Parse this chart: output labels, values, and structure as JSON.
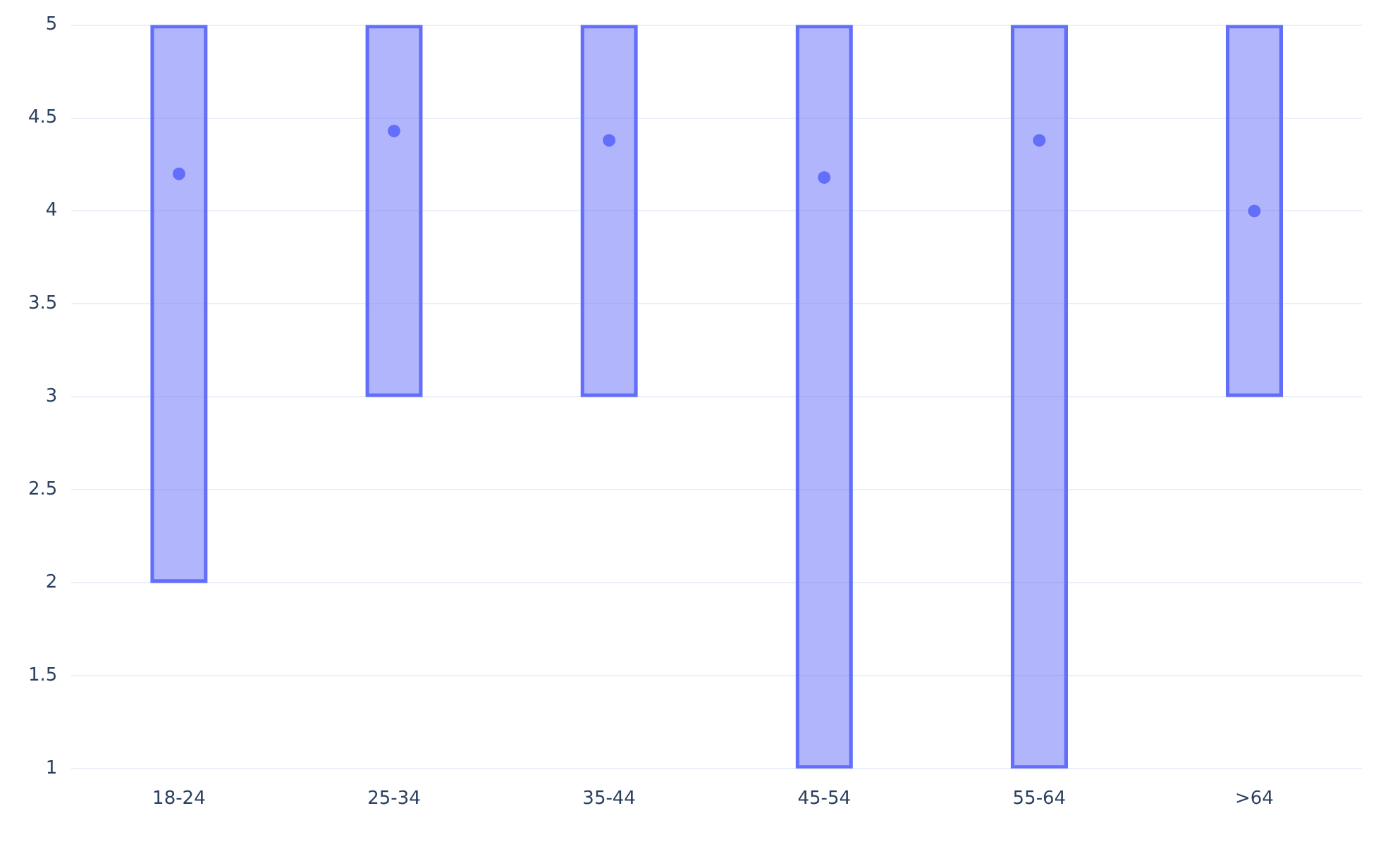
{
  "chart_data": {
    "type": "bar",
    "categories": [
      "18-24",
      "25-34",
      "35-44",
      "45-54",
      "55-64",
      ">64"
    ],
    "series": [
      {
        "type": "bar",
        "color": "#636efa",
        "values": [
          3,
          2,
          2,
          4,
          4,
          2
        ],
        "base": [
          2,
          3,
          3,
          1,
          1,
          3
        ]
      },
      {
        "type": "scatter",
        "color": "#636efa",
        "x": [
          "18-24",
          "25-34",
          "35-44",
          "45-54",
          "55-64",
          ">64"
        ],
        "values": [
          4.2,
          4.43,
          4.38,
          4.18,
          4.38,
          4.0
        ],
        "marker": "circle"
      }
    ],
    "ylim": [
      1,
      5
    ],
    "yticks": [
      1,
      1.5,
      2,
      2.5,
      3,
      3.5,
      4,
      4.5,
      5
    ],
    "grid": "y",
    "legend": false
  }
}
